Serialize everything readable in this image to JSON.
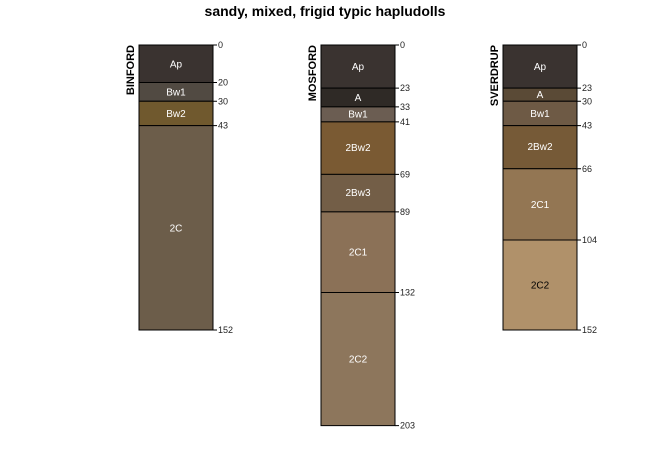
{
  "title": "sandy, mixed, frigid typic hapludolls",
  "profiles": [
    {
      "name": "BINFORD",
      "horizons": [
        {
          "name": "Ap",
          "top": 0,
          "bottom": 20,
          "color": "#3a3330",
          "text_color": "#ffffff"
        },
        {
          "name": "Bw1",
          "top": 20,
          "bottom": 30,
          "color": "#514a42",
          "text_color": "#ffffff"
        },
        {
          "name": "Bw2",
          "top": 30,
          "bottom": 43,
          "color": "#70592e",
          "text_color": "#ffffff"
        },
        {
          "name": "2C",
          "top": 43,
          "bottom": 152,
          "color": "#6c5d4a",
          "text_color": "#ffffff"
        }
      ],
      "depth_labels": [
        "0",
        "20",
        "30",
        "43",
        "152"
      ]
    },
    {
      "name": "MOSFORD",
      "horizons": [
        {
          "name": "Ap",
          "top": 0,
          "bottom": 23,
          "color": "#3a3330",
          "text_color": "#ffffff"
        },
        {
          "name": "A",
          "top": 23,
          "bottom": 33,
          "color": "#2f2a26",
          "text_color": "#ffffff"
        },
        {
          "name": "Bw1",
          "top": 33,
          "bottom": 41,
          "color": "#6b5d52",
          "text_color": "#ffffff"
        },
        {
          "name": "2Bw2",
          "top": 41,
          "bottom": 69,
          "color": "#7a5a33",
          "text_color": "#ffffff"
        },
        {
          "name": "2Bw3",
          "top": 69,
          "bottom": 89,
          "color": "#735e47",
          "text_color": "#ffffff"
        },
        {
          "name": "2C1",
          "top": 89,
          "bottom": 132,
          "color": "#8b7157",
          "text_color": "#ffffff"
        },
        {
          "name": "2C2",
          "top": 132,
          "bottom": 203,
          "color": "#8d765c",
          "text_color": "#ffffff"
        }
      ],
      "depth_labels": [
        "0",
        "23",
        "33",
        "41",
        "69",
        "89",
        "132",
        "203"
      ]
    },
    {
      "name": "SVERDRUP",
      "horizons": [
        {
          "name": "Ap",
          "top": 0,
          "bottom": 23,
          "color": "#3a3330",
          "text_color": "#ffffff"
        },
        {
          "name": "A",
          "top": 23,
          "bottom": 30,
          "color": "#5a4a36",
          "text_color": "#ffffff"
        },
        {
          "name": "Bw1",
          "top": 30,
          "bottom": 43,
          "color": "#6e5a45",
          "text_color": "#ffffff"
        },
        {
          "name": "2Bw2",
          "top": 43,
          "bottom": 66,
          "color": "#765a37",
          "text_color": "#ffffff"
        },
        {
          "name": "2C1",
          "top": 66,
          "bottom": 104,
          "color": "#937653",
          "text_color": "#ffffff"
        },
        {
          "name": "2C2",
          "top": 104,
          "bottom": 152,
          "color": "#b0916a",
          "text_color": "#000000"
        }
      ],
      "depth_labels": [
        "0",
        "23",
        "30",
        "43",
        "66",
        "104",
        "152"
      ]
    }
  ]
}
